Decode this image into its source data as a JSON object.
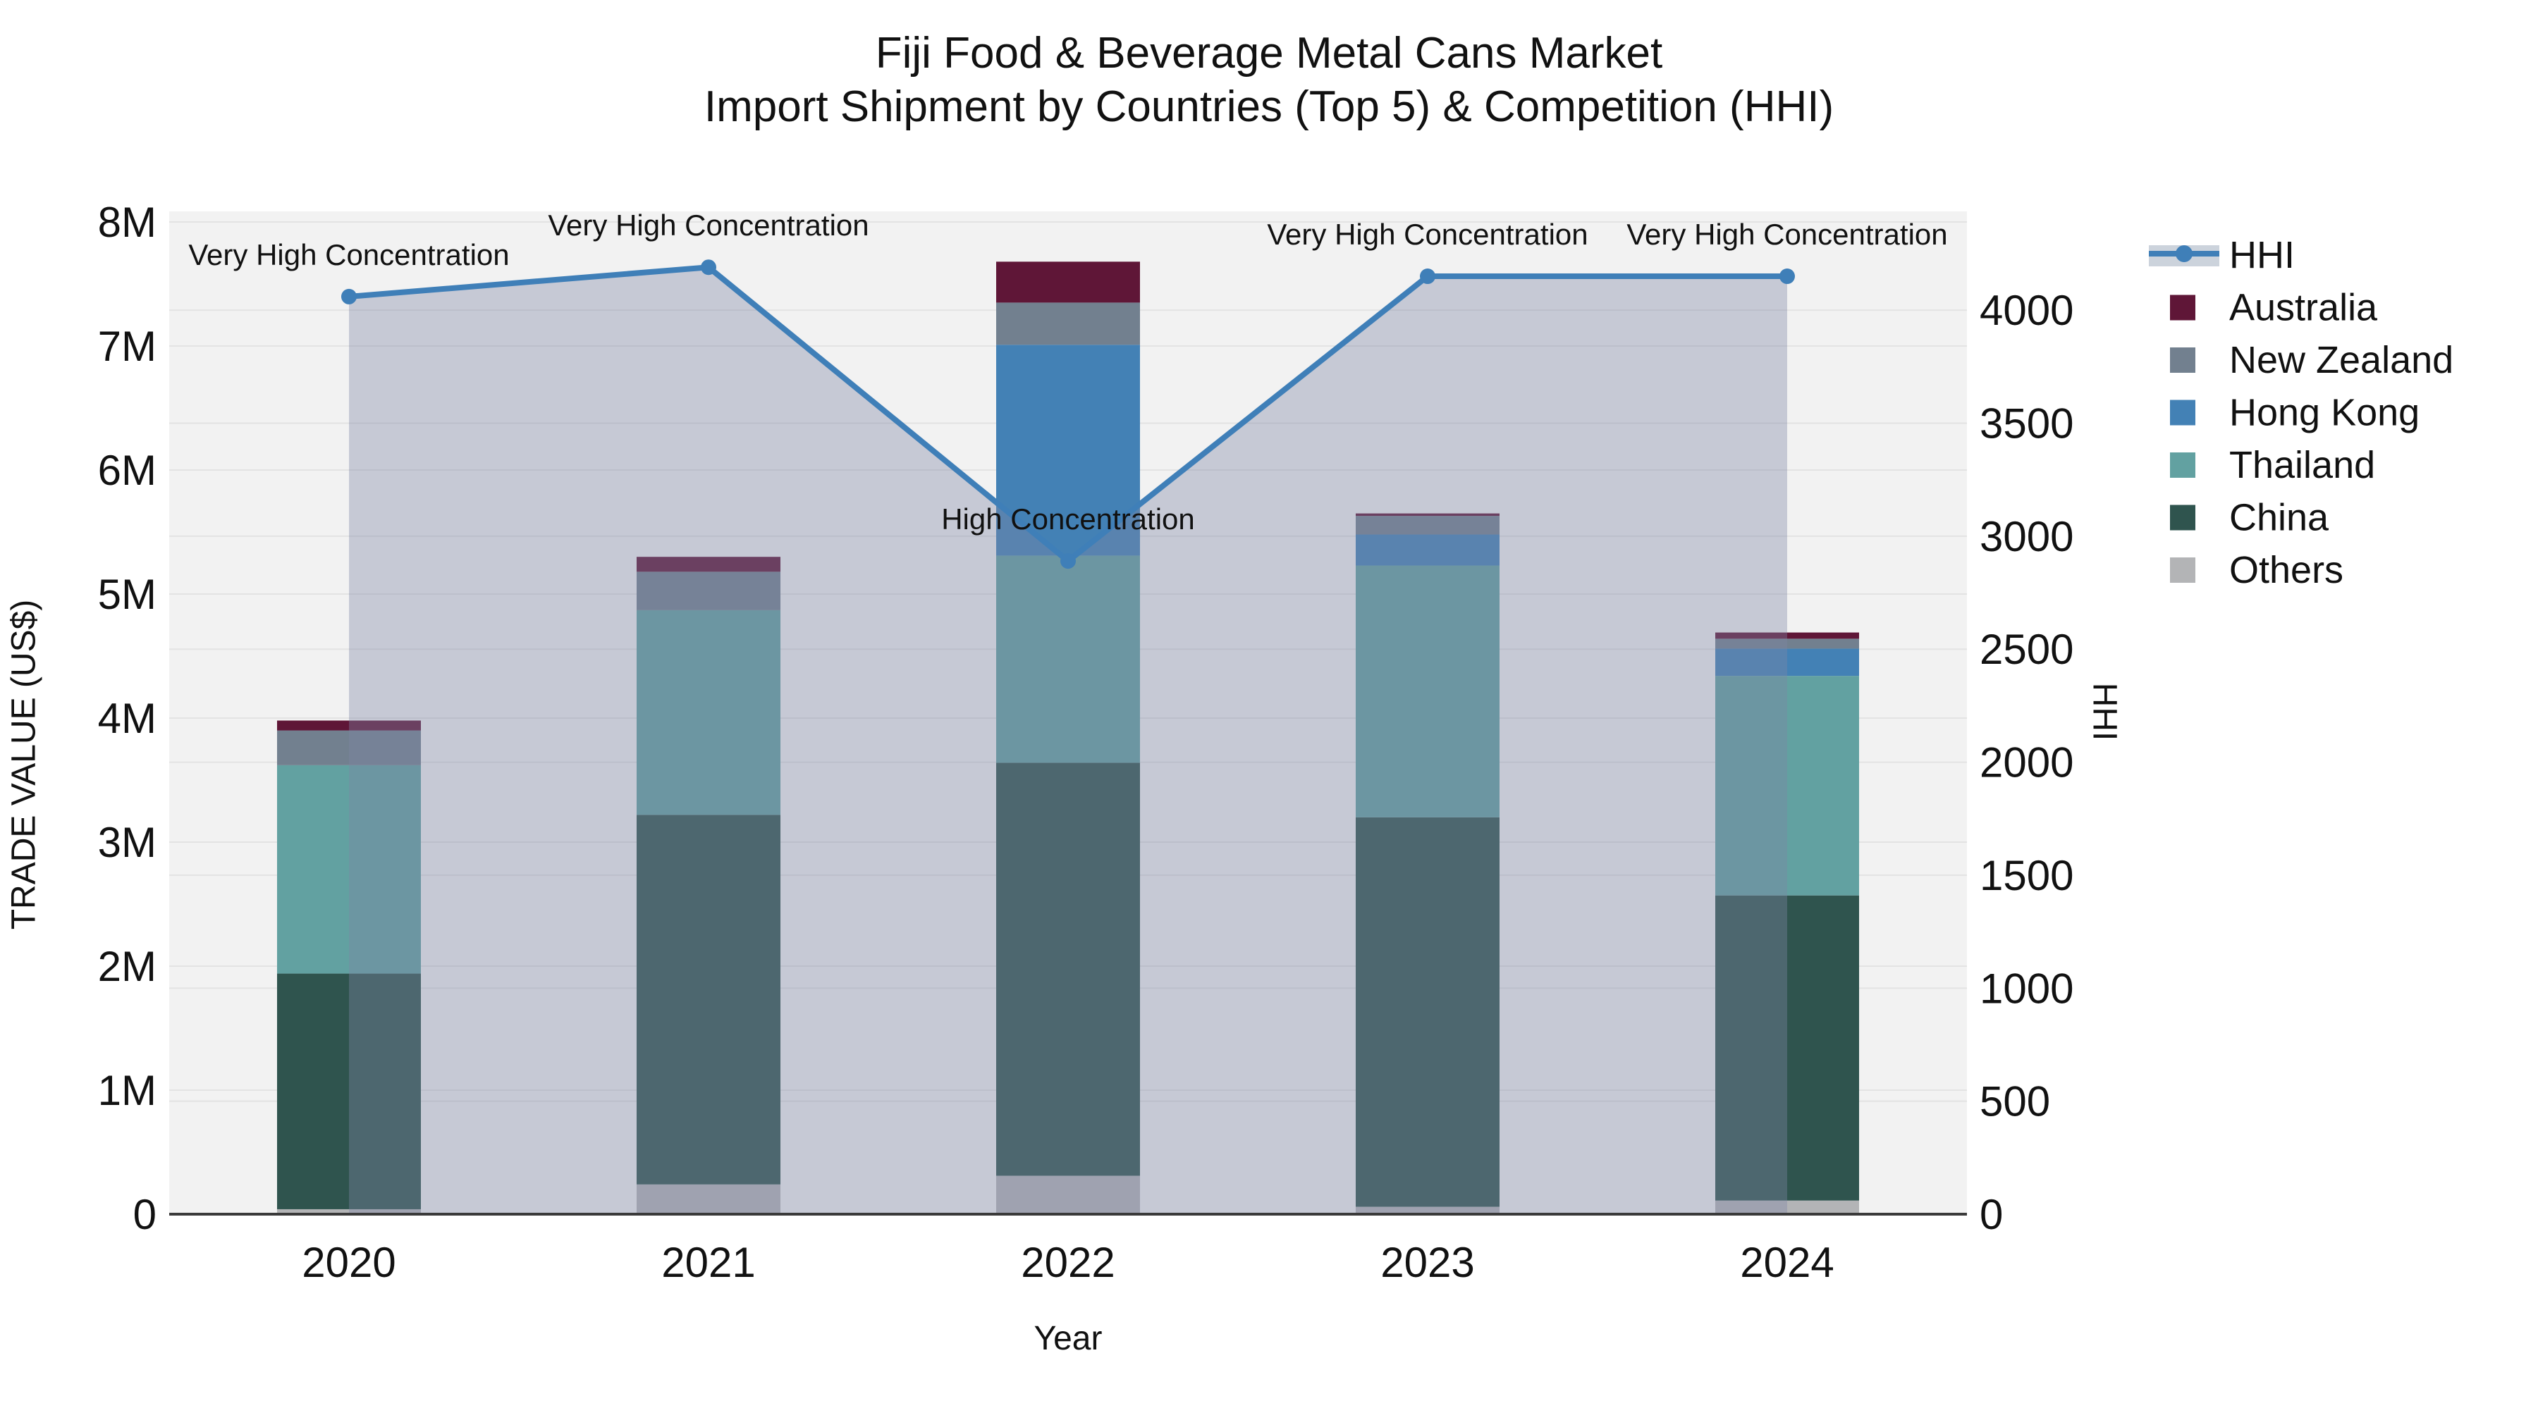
{
  "title": {
    "line1": "Fiji Food & Beverage Metal Cans Market",
    "line2": "Import Shipment by Countries (Top 5) & Competition (HHI)"
  },
  "labels": {
    "x": "Year",
    "y": "TRADE VALUE (US$)",
    "y2": "HHI"
  },
  "chart_data": {
    "type": "bar",
    "subtype": "stacked-bars-with-line-area-overlay",
    "categories": [
      "2020",
      "2021",
      "2022",
      "2023",
      "2024"
    ],
    "series": [
      {
        "name": "Others",
        "color": "#b3b4b6",
        "values": [
          40000,
          240000,
          310000,
          60000,
          110000
        ]
      },
      {
        "name": "China",
        "color": "#2f544e",
        "values": [
          1900000,
          2980000,
          3330000,
          3140000,
          2460000
        ]
      },
      {
        "name": "Thailand",
        "color": "#62a1a1",
        "values": [
          1680000,
          1650000,
          1670000,
          2030000,
          1770000
        ]
      },
      {
        "name": "Hong Kong",
        "color": "#4381b5",
        "values": [
          0,
          0,
          1700000,
          250000,
          220000
        ]
      },
      {
        "name": "New Zealand",
        "color": "#72808f",
        "values": [
          280000,
          310000,
          340000,
          150000,
          80000
        ]
      },
      {
        "name": "Australia",
        "color": "#5f1637",
        "values": [
          80000,
          120000,
          330000,
          20000,
          50000
        ]
      }
    ],
    "line_series": {
      "name": "HHI",
      "color": "#3f7fb8",
      "area_color": "rgba(125,135,165,0.38)",
      "values": [
        4060,
        4190,
        2890,
        4150,
        4150
      ]
    },
    "annotations": [
      "Very High Concentration",
      "Very High Concentration",
      "High Concentration",
      "Very High Concentration",
      "Very High Concentration"
    ],
    "legend_order": [
      "HHI",
      "Australia",
      "New Zealand",
      "Hong Kong",
      "Thailand",
      "China",
      "Others"
    ],
    "xlabel": "Year",
    "ylabel": "TRADE VALUE (US$)",
    "y2label": "HHI",
    "ylim": [
      0,
      8000000
    ],
    "y2lim": [
      0,
      4437
    ],
    "ytick_labels": [
      "0",
      "1M",
      "2M",
      "3M",
      "4M",
      "5M",
      "6M",
      "7M",
      "8M"
    ],
    "ytick_values": [
      0,
      1000000,
      2000000,
      3000000,
      4000000,
      5000000,
      6000000,
      7000000,
      8000000
    ],
    "y2tick_labels": [
      "0",
      "500",
      "1000",
      "1500",
      "2000",
      "2500",
      "3000",
      "3500",
      "4000"
    ],
    "y2tick_values": [
      0,
      500,
      1000,
      1500,
      2000,
      2500,
      3000,
      3500,
      4000
    ],
    "grid": true,
    "legend_position": "right",
    "plot_background": "#f2f2f2",
    "grid_color": "#e3e3e3",
    "axis_line_color": "#3a3a3a",
    "text_color": "#111111"
  }
}
